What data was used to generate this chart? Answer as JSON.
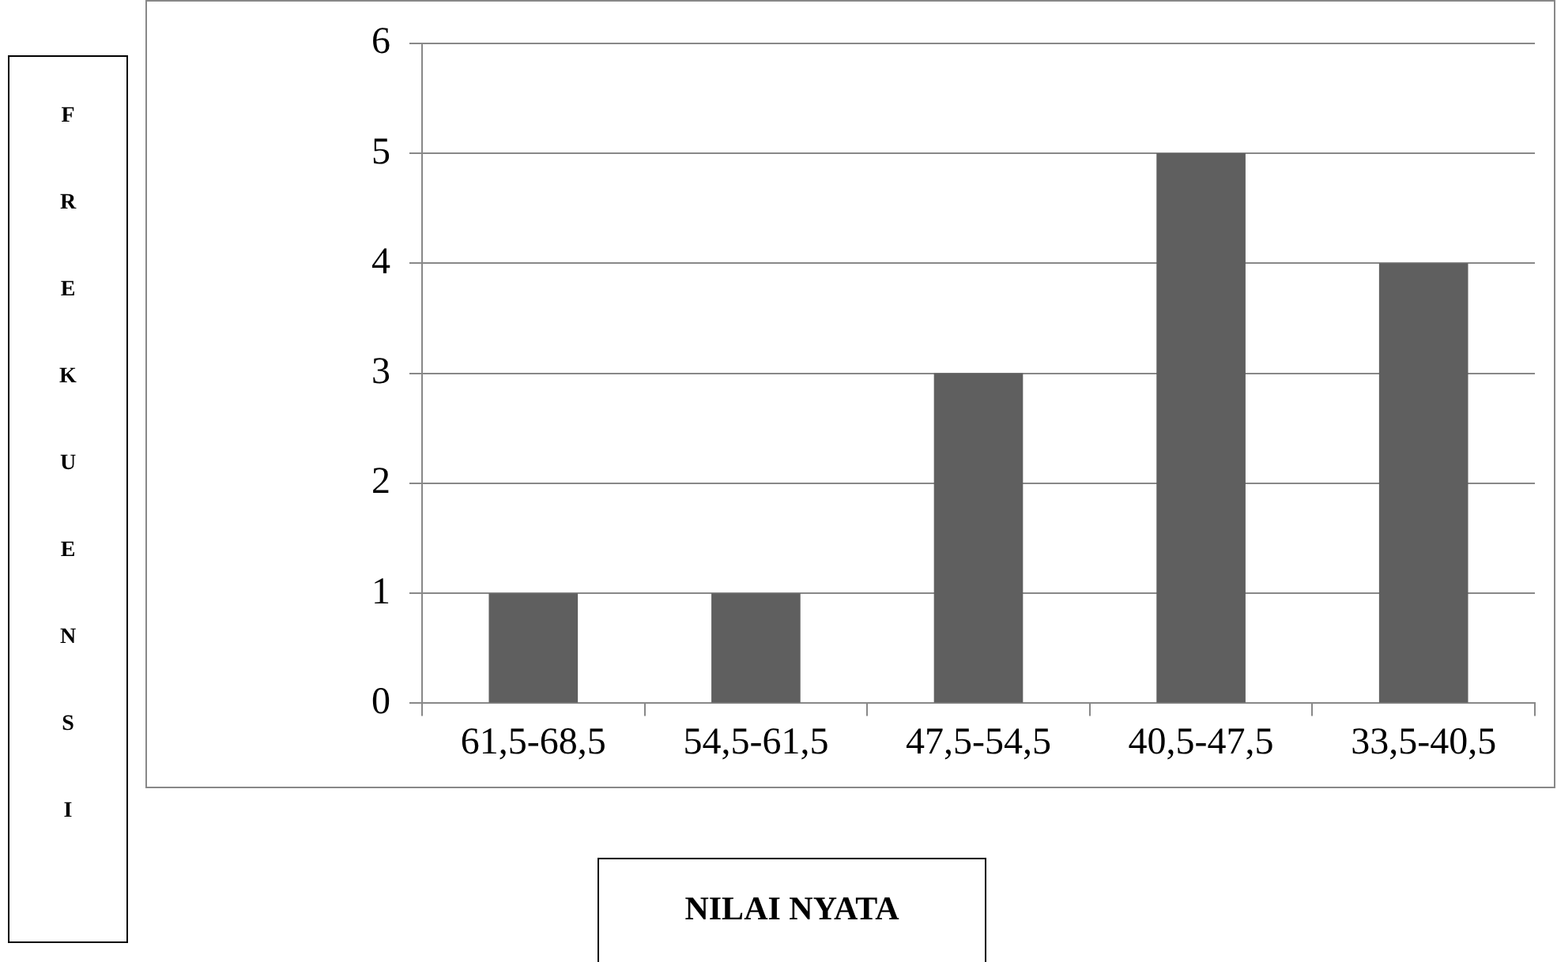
{
  "chart_data": {
    "type": "bar",
    "xlabel": "NILAI NYATA",
    "ylabel": "FREKUENSI",
    "categories": [
      "61,5-68,5",
      "54,5-61,5",
      "47,5-54,5",
      "40,5-47,5",
      "33,5-40,5"
    ],
    "values": [
      1,
      1,
      3,
      5,
      4
    ],
    "color": "#5f5f5f",
    "ylim": [
      0,
      6
    ],
    "yticks": [
      0,
      1,
      2,
      3,
      4,
      5,
      6
    ],
    "grid": "y",
    "legend": false
  }
}
